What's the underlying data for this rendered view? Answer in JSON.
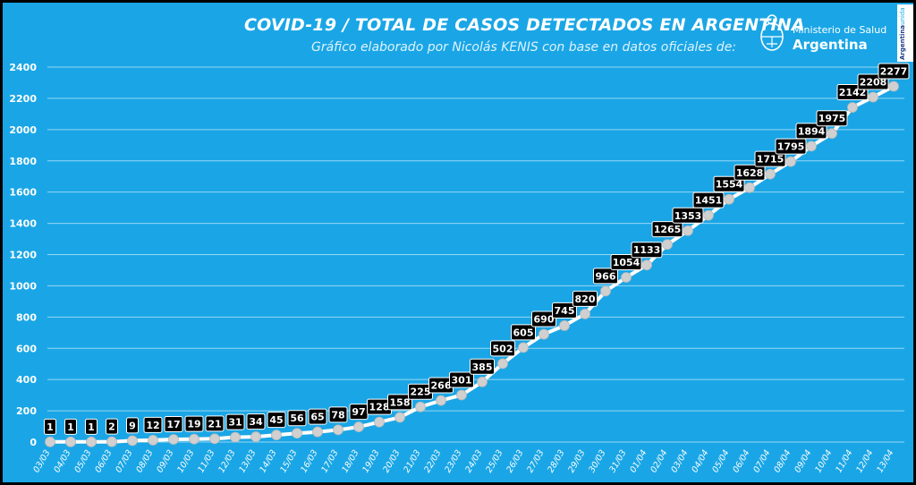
{
  "header": {
    "title": "COVID-19  /  TOTAL DE CASOS DETECTADOS EN ARGENTINA",
    "subtitle": "Gráfico elaborado por Nicolás KENIS con base en datos oficiales de:",
    "ministry_line1": "Ministerio de Salud",
    "ministry_line2": "Argentina",
    "badge_main": "Argentina",
    "badge_accent": "unida"
  },
  "colors": {
    "background": "#1aa6e6",
    "line": "#ffffff",
    "marker": "#d0d0d0",
    "label_box": "#000000"
  },
  "chart_data": {
    "type": "line",
    "title": "COVID-19  /  TOTAL DE CASOS DETECTADOS EN ARGENTINA",
    "categories": [
      "03/03",
      "04/03",
      "05/03",
      "06/03",
      "07/03",
      "08/03",
      "09/03",
      "10/03",
      "11/03",
      "12/03",
      "13/03",
      "14/03",
      "15/03",
      "16/03",
      "17/03",
      "18/03",
      "19/03",
      "20/03",
      "21/03",
      "22/03",
      "23/03",
      "24/03",
      "25/03",
      "26/03",
      "27/03",
      "28/03",
      "29/03",
      "30/03",
      "31/03",
      "01/04",
      "02/04",
      "03/04",
      "04/04",
      "05/04",
      "06/04",
      "07/04",
      "08/04",
      "09/04",
      "10/04",
      "11/04",
      "12/04",
      "13/04"
    ],
    "values": [
      1,
      1,
      1,
      2,
      9,
      12,
      17,
      19,
      21,
      31,
      34,
      45,
      56,
      65,
      78,
      97,
      128,
      158,
      225,
      266,
      301,
      385,
      502,
      605,
      690,
      745,
      820,
      966,
      1054,
      1133,
      1265,
      1353,
      1451,
      1554,
      1628,
      1715,
      1795,
      1894,
      1975,
      2142,
      2208,
      2277
    ],
    "yticks": [
      0,
      200,
      400,
      600,
      800,
      1000,
      1200,
      1400,
      1600,
      1800,
      2000,
      2200,
      2400
    ],
    "ylim": [
      0,
      2400
    ],
    "grid": true,
    "legend": "none",
    "data_labels": true
  }
}
